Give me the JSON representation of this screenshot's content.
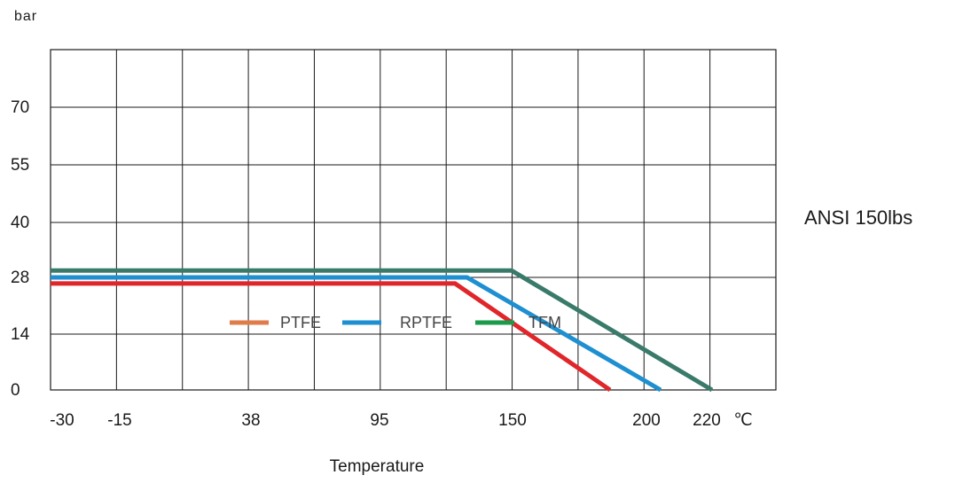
{
  "chart_data": {
    "type": "line",
    "ylabel": "bar",
    "xlabel": "Temperature",
    "x_unit": "℃",
    "side_label": "ANSI 150lbs",
    "x_ticks": [
      "-30",
      "-15",
      "38",
      "95",
      "150",
      "200",
      "220"
    ],
    "y_ticks": [
      "0",
      "14",
      "28",
      "40",
      "55",
      "70"
    ],
    "grid": true,
    "legend_placement": "inside-center",
    "series": [
      {
        "name": "PTFE",
        "legend_color": "#e07b4a",
        "line_color": "#e0262a",
        "points": [
          [
            "-30",
            26.5
          ],
          [
            "140",
            26.5
          ],
          [
            "190",
            0
          ]
        ]
      },
      {
        "name": "RPTFE",
        "legend_color": "#1e8fd0",
        "line_color": "#1e8fd0",
        "points": [
          [
            "-30",
            28
          ],
          [
            "145",
            28
          ],
          [
            "205",
            0
          ]
        ]
      },
      {
        "name": "TFM",
        "legend_color": "#1a9a4a",
        "line_color": "#3a7a6a",
        "points": [
          [
            "-30",
            29.5
          ],
          [
            "160",
            29.5
          ],
          [
            "220",
            0
          ]
        ]
      }
    ]
  }
}
